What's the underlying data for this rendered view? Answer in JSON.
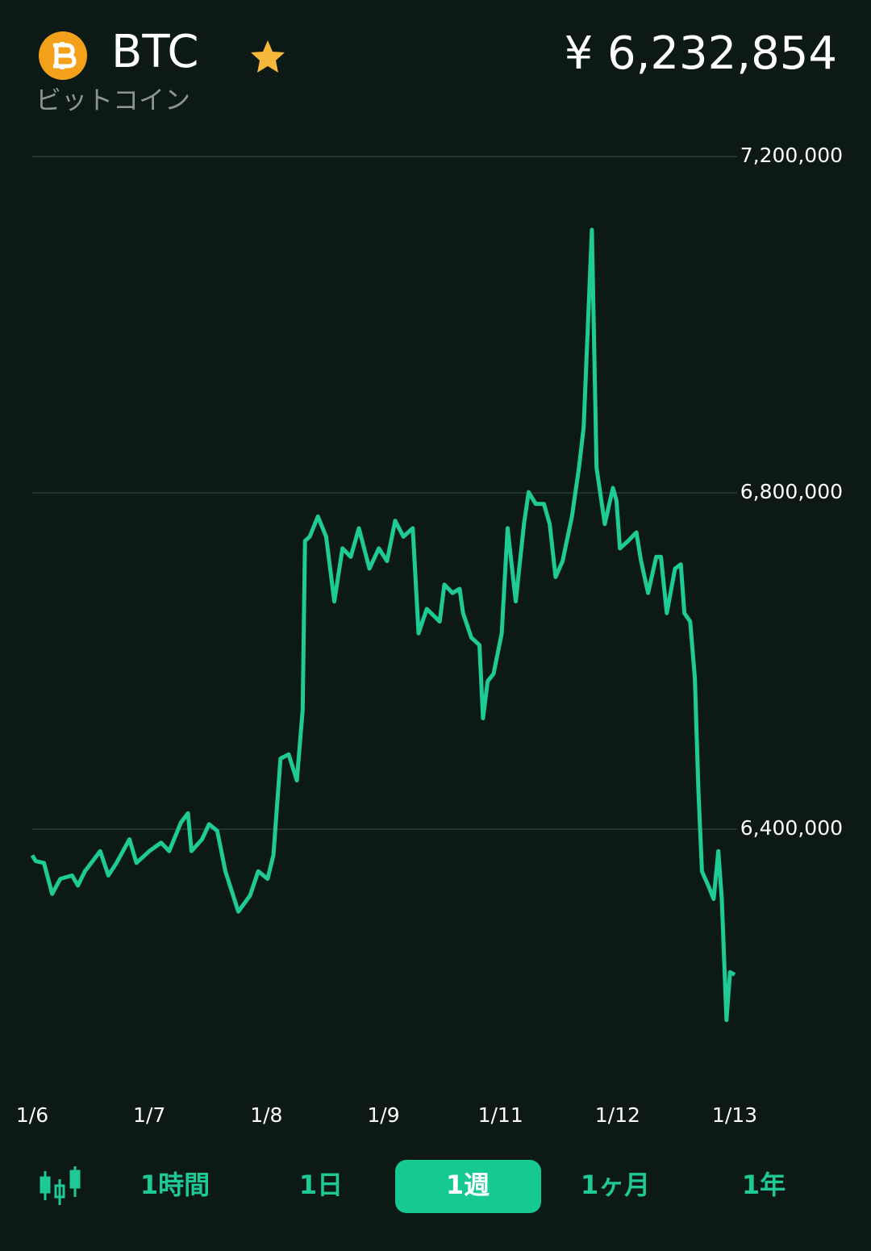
{
  "header": {
    "symbol": "BTC",
    "name": "ビットコイン",
    "price": "¥ 6,232,854"
  },
  "chart_data": {
    "type": "line",
    "color": "#1fcb95",
    "grid": true,
    "xlim": [
      0,
      6
    ],
    "xticks": [
      {
        "value": 0,
        "label": "1/6"
      },
      {
        "value": 1,
        "label": "1/7"
      },
      {
        "value": 2,
        "label": "1/8"
      },
      {
        "value": 3,
        "label": "1/9"
      },
      {
        "value": 4,
        "label": "1/11"
      },
      {
        "value": 5,
        "label": "1/12"
      },
      {
        "value": 6,
        "label": "1/13"
      }
    ],
    "ylim": [
      6000000,
      7300000
    ],
    "yticks": [
      {
        "value": 6400000,
        "label": "6,400,000"
      },
      {
        "value": 6800000,
        "label": "6,800,000"
      },
      {
        "value": 7200000,
        "label": "7,200,000"
      }
    ],
    "x": [
      0,
      0.03,
      0.1,
      0.17,
      0.24,
      0.34,
      0.39,
      0.45,
      0.58,
      0.65,
      0.72,
      0.83,
      0.89,
      1.0,
      1.1,
      1.17,
      1.27,
      1.33,
      1.36,
      1.45,
      1.51,
      1.58,
      1.65,
      1.76,
      1.86,
      1.93,
      2.01,
      2.06,
      2.12,
      2.19,
      2.26,
      2.31,
      2.33,
      2.37,
      2.44,
      2.51,
      2.58,
      2.65,
      2.72,
      2.79,
      2.88,
      2.96,
      3.03,
      3.1,
      3.17,
      3.25,
      3.3,
      3.37,
      3.48,
      3.52,
      3.59,
      3.65,
      3.68,
      3.75,
      3.82,
      3.85,
      3.89,
      3.94,
      4.01,
      4.06,
      4.13,
      4.2,
      4.24,
      4.3,
      4.37,
      4.42,
      4.47,
      4.53,
      4.61,
      4.67,
      4.71,
      4.78,
      4.82,
      4.89,
      4.96,
      4.99,
      5.02,
      5.09,
      5.16,
      5.2,
      5.26,
      5.33,
      5.37,
      5.42,
      5.49,
      5.54,
      5.57,
      5.62,
      5.66,
      5.69,
      5.72,
      5.78,
      5.82,
      5.86,
      5.89,
      5.93,
      5.96,
      6.0
    ],
    "series": [
      {
        "values": [
          6369000,
          6362000,
          6360000,
          6323000,
          6341000,
          6345000,
          6333000,
          6350000,
          6374000,
          6345000,
          6360000,
          6388000,
          6360000,
          6374000,
          6384000,
          6374000,
          6408000,
          6419000,
          6374000,
          6388000,
          6406000,
          6398000,
          6350000,
          6302000,
          6321000,
          6350000,
          6341000,
          6369000,
          6484000,
          6489000,
          6458000,
          6542000,
          6743000,
          6748000,
          6772000,
          6748000,
          6671000,
          6734000,
          6724000,
          6758000,
          6710000,
          6734000,
          6719000,
          6767000,
          6748000,
          6758000,
          6633000,
          6662000,
          6647000,
          6691000,
          6681000,
          6686000,
          6657000,
          6628000,
          6619000,
          6532000,
          6576000,
          6585000,
          6633000,
          6758000,
          6671000,
          6763000,
          6801000,
          6787000,
          6787000,
          6763000,
          6700000,
          6719000,
          6772000,
          6830000,
          6878000,
          7113000,
          6830000,
          6763000,
          6806000,
          6791000,
          6734000,
          6743000,
          6753000,
          6719000,
          6681000,
          6724000,
          6724000,
          6657000,
          6710000,
          6715000,
          6657000,
          6647000,
          6580000,
          6446000,
          6350000,
          6331000,
          6317000,
          6374000,
          6317000,
          6173000,
          6230000,
          6227000
        ]
      }
    ]
  },
  "tabs": [
    {
      "label": "1時間",
      "selected": false
    },
    {
      "label": "1日",
      "selected": false
    },
    {
      "label": "1週",
      "selected": true
    },
    {
      "label": "1ヶ月",
      "selected": false
    },
    {
      "label": "1年",
      "selected": false
    }
  ]
}
